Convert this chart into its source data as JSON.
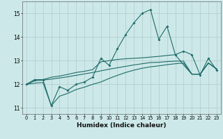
{
  "xlabel": "Humidex (Indice chaleur)",
  "background_color": "#cde8e8",
  "grid_color": "#b5d0d0",
  "line_color": "#1e6b6b",
  "x_values": [
    0,
    1,
    2,
    3,
    4,
    5,
    6,
    7,
    8,
    9,
    10,
    11,
    12,
    13,
    14,
    15,
    16,
    17,
    18,
    19,
    20,
    21,
    22,
    23
  ],
  "line_main": [
    12.0,
    12.2,
    12.2,
    11.1,
    11.9,
    11.75,
    12.0,
    12.1,
    12.3,
    13.1,
    12.8,
    13.5,
    14.1,
    14.6,
    15.0,
    15.15,
    13.9,
    14.45,
    13.25,
    13.4,
    13.25,
    12.4,
    13.1,
    12.6
  ],
  "line_upper": [
    12.0,
    12.2,
    12.2,
    12.3,
    12.35,
    12.42,
    12.5,
    12.55,
    12.62,
    12.95,
    13.0,
    13.05,
    13.08,
    13.1,
    13.12,
    13.15,
    13.18,
    13.22,
    13.25,
    12.82,
    12.43,
    12.43,
    12.9,
    12.65
  ],
  "line_mid": [
    12.0,
    12.15,
    12.18,
    12.22,
    12.27,
    12.32,
    12.38,
    12.44,
    12.5,
    12.57,
    12.64,
    12.7,
    12.76,
    12.82,
    12.87,
    12.92,
    12.93,
    12.96,
    12.98,
    12.98,
    12.43,
    12.43,
    12.9,
    12.65
  ],
  "line_lower": [
    12.0,
    12.05,
    12.08,
    11.1,
    11.5,
    11.62,
    11.78,
    11.88,
    12.0,
    12.1,
    12.25,
    12.38,
    12.5,
    12.6,
    12.68,
    12.74,
    12.78,
    12.83,
    12.87,
    12.9,
    12.43,
    12.43,
    12.9,
    12.65
  ],
  "ylim": [
    10.75,
    15.5
  ],
  "yticks": [
    11,
    12,
    13,
    14,
    15
  ],
  "xlim": [
    -0.5,
    23.5
  ]
}
